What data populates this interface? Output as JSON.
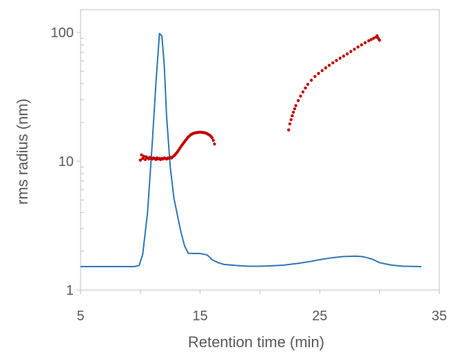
{
  "chart_data": {
    "type": "scatter",
    "title": "",
    "xlabel": "Retention time (min)",
    "ylabel": "rms radius (nm)",
    "xlim": [
      5,
      35
    ],
    "ylim": [
      1,
      130
    ],
    "yscale": "log",
    "x_ticks": [
      5,
      15,
      25,
      35
    ],
    "y_ticks": [
      1,
      10,
      100
    ],
    "x_tick_labels": [
      "5",
      "15",
      "25",
      "35"
    ],
    "y_tick_labels": [
      "1",
      "10",
      "100"
    ],
    "grid": false,
    "legend": "none",
    "series": [
      {
        "kind": "line",
        "color": "#2e75b6",
        "x": [
          5,
          8,
          9.5,
          9.9,
          10.2,
          10.6,
          11.0,
          11.3,
          11.6,
          11.8,
          12.0,
          12.2,
          12.5,
          12.8,
          13.1,
          13.4,
          13.7,
          14.0,
          14.4,
          15.0,
          15.6,
          16.0,
          16.5,
          17.0,
          18.0,
          19.0,
          20.0,
          21.0,
          22.0,
          23.0,
          24.0,
          25.0,
          26.0,
          27.0,
          28.0,
          28.5,
          29.0,
          29.5,
          30.0,
          31.0,
          32.0,
          33.5
        ],
        "y": [
          1.52,
          1.52,
          1.52,
          1.55,
          1.9,
          4.0,
          14.0,
          40.0,
          98.0,
          94.0,
          55.0,
          22.0,
          9.0,
          5.2,
          3.8,
          2.8,
          2.2,
          1.93,
          1.92,
          1.92,
          1.87,
          1.72,
          1.63,
          1.58,
          1.55,
          1.53,
          1.53,
          1.54,
          1.56,
          1.6,
          1.65,
          1.72,
          1.78,
          1.82,
          1.83,
          1.82,
          1.78,
          1.72,
          1.63,
          1.56,
          1.53,
          1.52
        ]
      },
      {
        "kind": "points",
        "color": "#c00000",
        "x": [
          10.0,
          10.1,
          10.2,
          10.3,
          10.4,
          10.5,
          10.6,
          10.7,
          10.8,
          10.9,
          11.0,
          11.1,
          11.2,
          11.3,
          11.4,
          11.5,
          11.6,
          11.7,
          11.8,
          11.9,
          12.0,
          12.1,
          12.2,
          12.3,
          12.4,
          12.5,
          12.6,
          12.7,
          12.8,
          12.9,
          13.0,
          13.1,
          13.2,
          13.3,
          13.4,
          13.5,
          13.6,
          13.7,
          13.8,
          13.9,
          14.0,
          14.1,
          14.2,
          14.3,
          14.4,
          14.5,
          14.6,
          14.7,
          14.8,
          14.9,
          15.0,
          15.1,
          15.2,
          15.3,
          15.4,
          15.5,
          15.6,
          15.7,
          15.8,
          15.9,
          16.0,
          16.1,
          16.2
        ],
        "y": [
          10.2,
          11.2,
          10.5,
          10.9,
          10.3,
          10.8,
          10.6,
          10.4,
          10.7,
          10.5,
          10.4,
          10.6,
          10.5,
          10.3,
          10.6,
          10.4,
          10.5,
          10.3,
          10.5,
          10.4,
          10.6,
          10.5,
          10.4,
          10.6,
          10.5,
          10.7,
          10.6,
          10.8,
          11.0,
          11.2,
          11.5,
          11.8,
          12.2,
          12.6,
          13.0,
          13.4,
          13.8,
          14.2,
          14.6,
          15.0,
          15.4,
          15.7,
          16.0,
          16.2,
          16.4,
          16.5,
          16.6,
          16.7,
          16.7,
          16.8,
          16.8,
          16.8,
          16.7,
          16.7,
          16.6,
          16.5,
          16.3,
          16.1,
          15.9,
          15.6,
          15.2,
          14.5,
          13.6
        ]
      },
      {
        "kind": "points",
        "color": "#c00000",
        "x": [
          22.4,
          22.5,
          22.6,
          22.7,
          22.8,
          22.9,
          23.0,
          23.2,
          23.4,
          23.6,
          23.8,
          24.0,
          24.3,
          24.6,
          24.9,
          25.2,
          25.5,
          25.8,
          26.1,
          26.4,
          26.7,
          27.0,
          27.3,
          27.6,
          27.9,
          28.2,
          28.5,
          28.8,
          29.1,
          29.3,
          29.5,
          29.7,
          29.8,
          29.9,
          30.0
        ],
        "y": [
          17.5,
          19.5,
          21.0,
          22.5,
          24.0,
          25.5,
          27.0,
          29.5,
          32.0,
          34.5,
          37.0,
          39.5,
          42.5,
          45.5,
          48.0,
          50.5,
          53.0,
          55.5,
          58.0,
          60.5,
          63.0,
          65.5,
          68.0,
          71.0,
          74.0,
          77.0,
          80.0,
          83.0,
          86.0,
          88.0,
          90.0,
          92.0,
          94.0,
          90.0,
          87.0
        ]
      }
    ]
  }
}
